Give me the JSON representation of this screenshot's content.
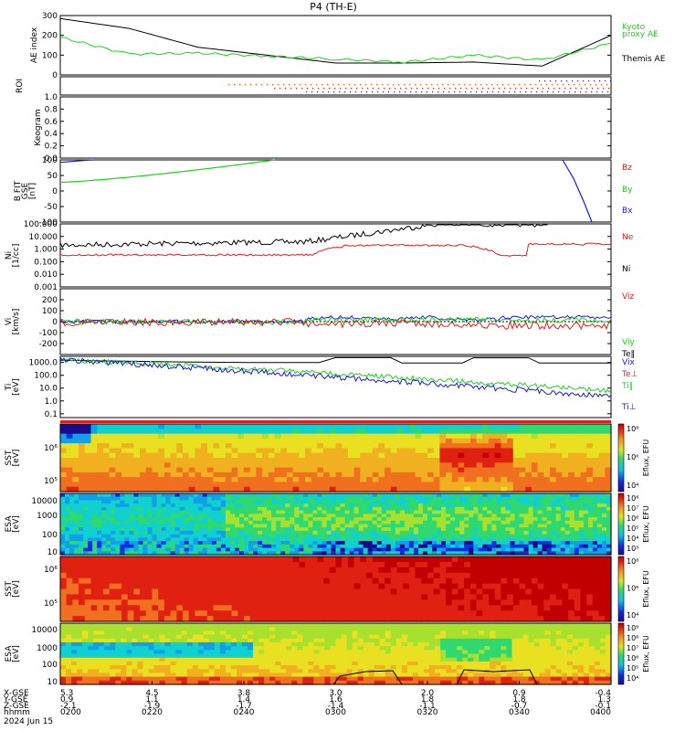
{
  "title": "P4 (TH-E)",
  "colors": {
    "black": "#000000",
    "green": "#1ed11e",
    "red": "#dd1c1c",
    "blue": "#1a1ad8",
    "orange": "#ee5a1e"
  },
  "chart_data": [
    {
      "type": "line",
      "panel": "ae",
      "ylabel": "AE index",
      "ylim": [
        0,
        300
      ],
      "yticks": [
        "0",
        "100",
        "200",
        "300"
      ],
      "x": [
        0,
        0.5,
        1,
        1.5,
        2,
        2.5,
        3,
        3.5,
        4
      ],
      "series": [
        {
          "name": "Themis AE",
          "color": "black",
          "values": [
            285,
            235,
            140,
            100,
            60,
            60,
            65,
            45,
            200
          ]
        },
        {
          "name": "Kyoto proxy AE",
          "color": "green",
          "values": [
            190,
            105,
            110,
            95,
            80,
            65,
            100,
            75,
            160
          ]
        }
      ],
      "legend": [
        {
          "text": "Kyoto",
          "color": "green"
        },
        {
          "text": "proxy AE",
          "color": "green"
        },
        {
          "text": "Themis AE",
          "color": "black"
        }
      ]
    },
    {
      "type": "scatter",
      "panel": "roi",
      "ylabel": "ROI",
      "note": "dotted ROI flag rows"
    },
    {
      "type": "line",
      "panel": "keogram",
      "ylabel": "Keogram",
      "ylim": [
        0,
        1
      ],
      "yticks": [
        "0.0",
        "0.2",
        "0.4",
        "0.6",
        "0.8",
        "1.0"
      ]
    },
    {
      "type": "line",
      "panel": "bfield",
      "ylabel_lines": [
        "B FIT",
        "GSE",
        "[nT]"
      ],
      "ylim": [
        -100,
        100
      ],
      "yticks": [
        "-100",
        "-50",
        "0",
        "50",
        "100"
      ],
      "legend": [
        {
          "text": "Bz",
          "color": "red"
        },
        {
          "text": "By",
          "color": "green"
        },
        {
          "text": "Bx",
          "color": "blue"
        }
      ]
    },
    {
      "type": "line",
      "panel": "density",
      "ylabel_lines": [
        "Ni",
        "[1/cc]"
      ],
      "scale": "log",
      "ylim": [
        0.001,
        100
      ],
      "yticks": [
        "0.001",
        "0.010",
        "0.100",
        "1.000",
        "10.000",
        "100.000"
      ],
      "legend": [
        {
          "text": "Ne",
          "color": "red"
        },
        {
          "text": "Ni",
          "color": "black"
        }
      ]
    },
    {
      "type": "line",
      "panel": "velocity",
      "ylabel_lines": [
        "Vi",
        "[km/s]"
      ],
      "ylim": [
        -300,
        300
      ],
      "yticks": [
        "-200",
        "-100",
        "0",
        "100",
        "200"
      ],
      "legend": [
        {
          "text": "Viz",
          "color": "red"
        },
        {
          "text": "Viy",
          "color": "green"
        },
        {
          "text": "Vix",
          "color": "blue"
        }
      ]
    },
    {
      "type": "line",
      "panel": "temperature",
      "ylabel_lines": [
        "Ti",
        "[eV]"
      ],
      "scale": "log",
      "ylim": [
        0.05,
        3000
      ],
      "yticks": [
        "0.1",
        "1.0",
        "10.0",
        "100.0",
        "1000.0"
      ],
      "legend": [
        {
          "text": "Te‖",
          "color": "black"
        },
        {
          "text": "Te⊥",
          "color": "red"
        },
        {
          "text": "Ti‖",
          "color": "green"
        },
        {
          "text": "Ti⊥",
          "color": "blue"
        }
      ]
    },
    {
      "type": "heatmap",
      "panel": "sst_ion",
      "ylabel_lines": [
        "SST",
        "[eV]"
      ],
      "yticks": [
        "10⁶",
        "10⁵"
      ],
      "colorbar_label": "Eflux, EFU",
      "colorbar_ticks": [
        "10⁸",
        "10⁶",
        "10⁴"
      ]
    },
    {
      "type": "heatmap",
      "panel": "esa_ion",
      "ylabel_lines": [
        "ESA",
        "[eV]"
      ],
      "yticks": [
        "10000",
        "1000",
        "100",
        "10"
      ],
      "colorbar_label": "Eflux, EFU",
      "colorbar_ticks": [
        "10⁸",
        "10⁷",
        "10⁶",
        "10⁵",
        "10⁴",
        "10³"
      ]
    },
    {
      "type": "heatmap",
      "panel": "sst_elec",
      "ylabel_lines": [
        "SST",
        "[eV]"
      ],
      "yticks": [
        "10⁶",
        "10⁵"
      ],
      "colorbar_label": "Eflux, EFU",
      "colorbar_ticks": [
        "10⁸",
        "10⁶",
        "10⁴"
      ]
    },
    {
      "type": "heatmap",
      "panel": "esa_elec",
      "ylabel_lines": [
        "ESA",
        "[eV]"
      ],
      "yticks": [
        "10000",
        "1000",
        "100",
        "10"
      ],
      "colorbar_label": "Eflux, EFU",
      "colorbar_ticks": [
        "10⁹",
        "10⁸",
        "10⁷",
        "10⁶",
        "10⁵",
        "10⁴"
      ]
    }
  ],
  "time_axis": {
    "row_labels": [
      "X-GSE",
      "Y-GSE",
      "Z-GSE",
      "hhmm",
      "2024 Jun 15"
    ],
    "columns": [
      {
        "x": "5.3",
        "y": "0.9",
        "z": "-2.1",
        "t": "0200"
      },
      {
        "x": "4.5",
        "y": "1.1",
        "z": "-1.9",
        "t": "0220"
      },
      {
        "x": "3.8",
        "y": "1.4",
        "z": "-1.7",
        "t": "0240"
      },
      {
        "x": "3.0",
        "y": "1.6",
        "z": "-1.4",
        "t": "0300"
      },
      {
        "x": "2.0",
        "y": "1.8",
        "z": "-1.1",
        "t": "0320"
      },
      {
        "x": "0.9",
        "y": "1.8",
        "z": "-0.7",
        "t": "0340"
      },
      {
        "x": "-0.4",
        "y": "1.3",
        "z": "-0.1",
        "t": "0400"
      }
    ]
  }
}
